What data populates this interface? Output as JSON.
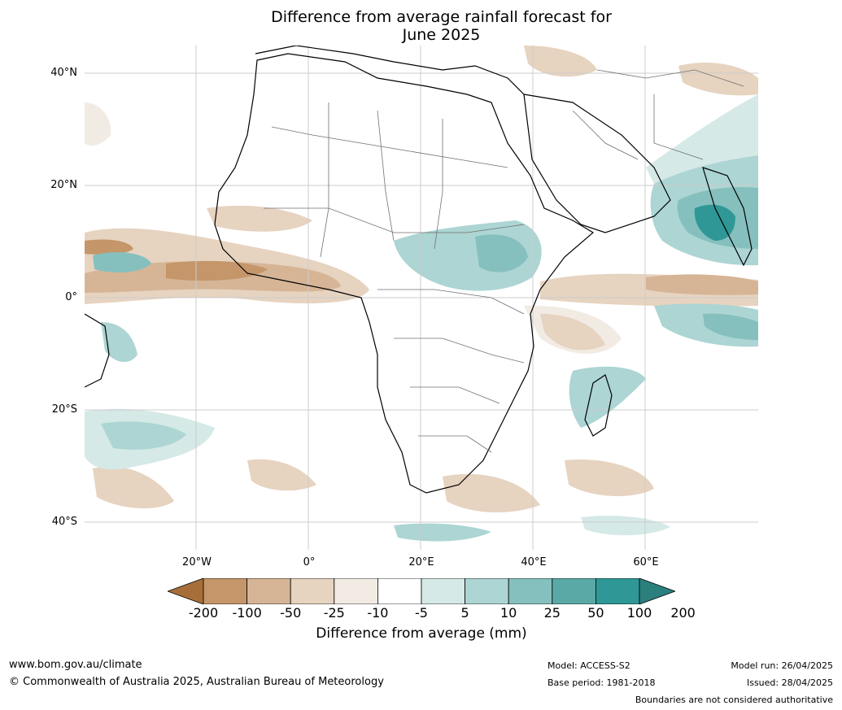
{
  "title": {
    "line1": "Difference from average rainfall forecast for",
    "line2": "June 2025"
  },
  "lat_labels": [
    "40°N",
    "20°N",
    "0°",
    "20°S",
    "40°S"
  ],
  "lon_labels": [
    "20°W",
    "0°",
    "20°E",
    "40°E",
    "60°E"
  ],
  "colorbar": {
    "label": "Difference from average (mm)",
    "ticks": [
      "-200",
      "-100",
      "-50",
      "-25",
      "-10",
      "-5",
      "5",
      "10",
      "25",
      "50",
      "100",
      "200"
    ],
    "colors": [
      "#a86e3a",
      "#c4966a",
      "#d6b596",
      "#e6d3c0",
      "#f2ebe4",
      "#ffffff",
      "#d5e9e7",
      "#acd5d3",
      "#85c0be",
      "#5aa9a7",
      "#2f9896",
      "#2b7f7d"
    ]
  },
  "footer": {
    "website": "www.bom.gov.au/climate",
    "copyright": "© Commonwealth of Australia 2025, Australian Bureau of Meteorology",
    "model": "Model: ACCESS-S2",
    "base_period": "Base period: 1981-2018",
    "model_run": "Model run: 26/04/2025",
    "issued": "Issued: 28/04/2025",
    "disclaimer": "Boundaries are not considered authoritative"
  }
}
